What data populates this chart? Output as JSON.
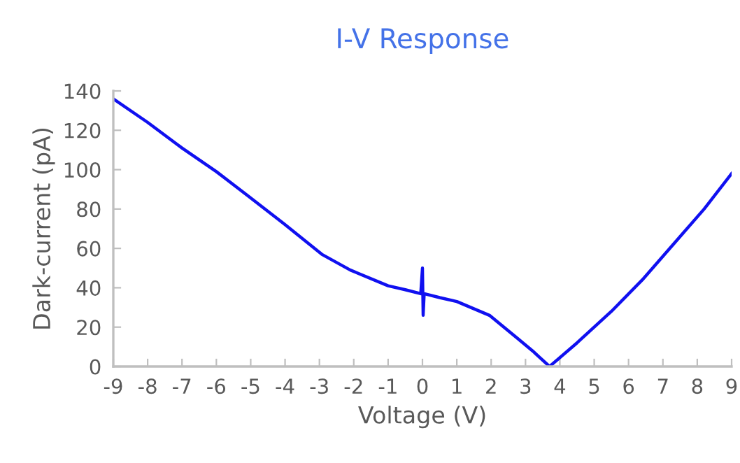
{
  "chart_data": {
    "type": "line",
    "title": "I-V Response",
    "xlabel": "Voltage (V)",
    "ylabel": "Dark-current (pA)",
    "series": [
      {
        "color": "#1010f0",
        "x": [
          -9,
          -8,
          -7,
          -6,
          -5.1,
          -4.03,
          -2.93,
          -2.1,
          -1,
          -0.5,
          -0.05,
          0,
          0.02,
          0.05,
          0.5,
          1,
          1.95,
          2.76,
          3.2,
          3.7,
          4.5,
          5.5,
          6.4,
          7.5,
          8.2,
          9
        ],
        "values": [
          136,
          124,
          111,
          99,
          87,
          72.5,
          57,
          49,
          41,
          39,
          37,
          50,
          26,
          37,
          35,
          33,
          26,
          14.4,
          8,
          0,
          12,
          28,
          44,
          66,
          80,
          98
        ]
      }
    ],
    "xlim": [
      -9,
      9
    ],
    "xticks": [
      -9,
      -8,
      -7,
      -6,
      -5,
      -4,
      -3,
      -2,
      -1,
      0,
      1,
      2,
      3,
      4,
      5,
      6,
      7,
      8,
      9
    ],
    "ylim": [
      0,
      140
    ],
    "yticks": [
      0,
      20,
      40,
      60,
      80,
      100,
      120,
      140
    ],
    "grid": false,
    "legend": false,
    "marker": "none",
    "line_style": "solid"
  }
}
